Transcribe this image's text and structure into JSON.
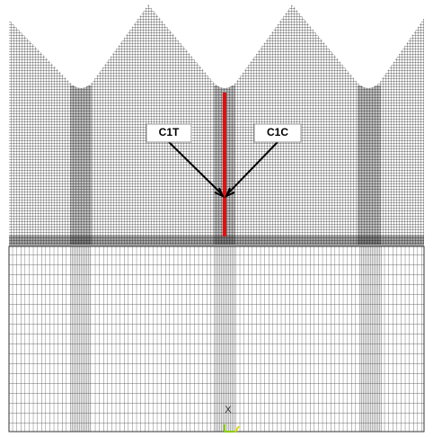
{
  "labels": {
    "left": "C1T",
    "right": "C1C"
  },
  "axis_marker": "X"
}
